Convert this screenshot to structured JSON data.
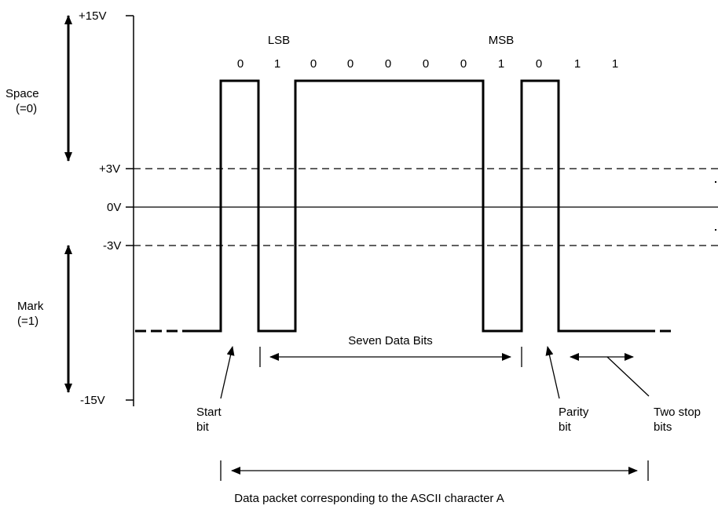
{
  "voltage_levels": {
    "plus15": "+15V",
    "plus3": "+3V",
    "zero": "0V",
    "minus3": "-3V",
    "minus15": "-15V"
  },
  "states": {
    "space_line1": "Space",
    "space_line2": "(=0)",
    "mark_line1": "Mark",
    "mark_line2": "(=1)"
  },
  "bit_markers": {
    "lsb": "LSB",
    "msb": "MSB"
  },
  "bits": [
    "0",
    "1",
    "0",
    "0",
    "0",
    "0",
    "0",
    "1",
    "0",
    "1",
    "1"
  ],
  "annotations": {
    "seven_data_bits": "Seven Data Bits",
    "start_bit_line1": "Start",
    "start_bit_line2": "bit",
    "parity_bit_line1": "Parity",
    "parity_bit_line2": "bit",
    "stop_bits_line1": "Two stop",
    "stop_bits_line2": "bits",
    "packet_caption": "Data packet corresponding to the ASCII character A"
  },
  "colors": {
    "ink": "#000000",
    "background": "#ffffff"
  }
}
